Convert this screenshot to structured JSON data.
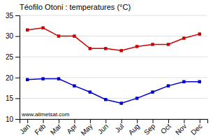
{
  "chart_data": {
    "type": "line",
    "title": "Téofilo Otoni : temperatures (°C)",
    "categories": [
      "Jan",
      "Feb",
      "Mar",
      "Apr",
      "May",
      "Jun",
      "Jul",
      "Aug",
      "Sep",
      "Oct",
      "Nov",
      "Dec"
    ],
    "series": [
      {
        "color": "#cc0000",
        "marker": "square",
        "values": [
          31.5,
          32.0,
          30.0,
          30.0,
          27.0,
          27.0,
          26.5,
          27.5,
          28.0,
          28.0,
          29.5,
          30.5
        ]
      },
      {
        "color": "#0000cc",
        "marker": "square",
        "values": [
          19.5,
          19.7,
          19.7,
          18.0,
          16.5,
          14.7,
          13.8,
          15.0,
          16.5,
          18.0,
          19.0,
          19.0
        ]
      }
    ],
    "ylim": [
      10,
      35
    ],
    "yticks": [
      10,
      15,
      20,
      25,
      30,
      35
    ],
    "grid": "y",
    "annotations": [
      "www.allmetsat.com"
    ]
  }
}
